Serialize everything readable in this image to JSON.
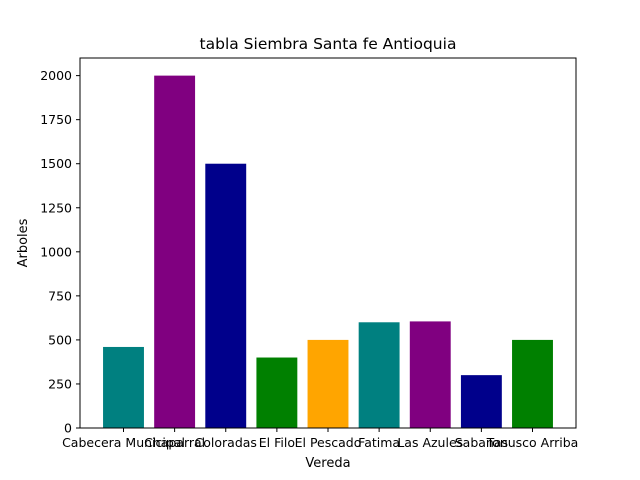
{
  "chart_data": {
    "type": "bar",
    "title": "tabla Siembra Santa fe Antioquia",
    "xlabel": "Vereda",
    "ylabel": "Arboles",
    "categories": [
      "Cabecera Municipal",
      "Chaparral",
      "Coloradas",
      "El Filo",
      "El Pescado",
      "Fatima",
      "Las Azules",
      "Sabanas",
      "Tonusco Arriba"
    ],
    "values": [
      460,
      2000,
      1500,
      400,
      500,
      600,
      605,
      300,
      500
    ],
    "colors": [
      "#008080",
      "#800080",
      "#00008B",
      "#008000",
      "#FFA500",
      "#008080",
      "#800080",
      "#00008B",
      "#008000"
    ],
    "ylim": [
      0,
      2100
    ],
    "yticks": [
      0,
      250,
      500,
      750,
      1000,
      1250,
      1500,
      1750,
      2000
    ],
    "grid": false,
    "legend": "none"
  }
}
